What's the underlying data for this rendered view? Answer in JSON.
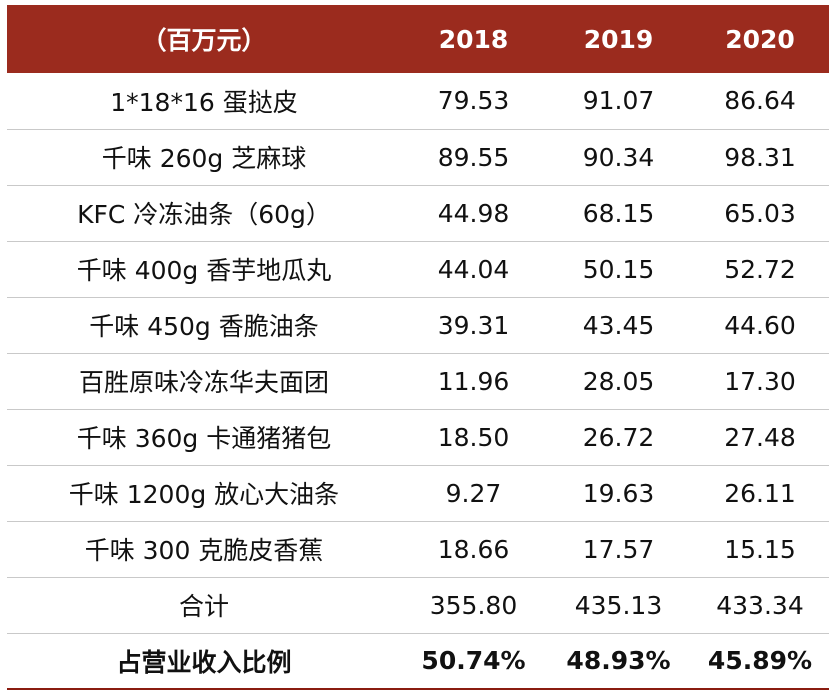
{
  "colors": {
    "header_bg": "#9b2b1e",
    "header_text": "#ffffff",
    "body_text": "#111111",
    "row_divider": "#c9c9c9",
    "bottom_rule": "#8a1c10"
  },
  "table": {
    "headers": [
      "（百万元）",
      "2018",
      "2019",
      "2020"
    ],
    "rows": [
      [
        "1*18*16 蛋挞皮",
        "79.53",
        "91.07",
        "86.64"
      ],
      [
        "千味 260g 芝麻球",
        "89.55",
        "90.34",
        "98.31"
      ],
      [
        "KFC 冷冻油条（60g）",
        "44.98",
        "68.15",
        "65.03"
      ],
      [
        "千味 400g 香芋地瓜丸",
        "44.04",
        "50.15",
        "52.72"
      ],
      [
        "千味 450g 香脆油条",
        "39.31",
        "43.45",
        "44.60"
      ],
      [
        "百胜原味冷冻华夫面团",
        "11.96",
        "28.05",
        "17.30"
      ],
      [
        "千味 360g 卡通猪猪包",
        "18.50",
        "26.72",
        "27.48"
      ],
      [
        "千味 1200g 放心大油条",
        "9.27",
        "19.63",
        "26.11"
      ],
      [
        "千味 300 克脆皮香蕉",
        "18.66",
        "17.57",
        "15.15"
      ],
      [
        "合计",
        "355.80",
        "435.13",
        "433.34"
      ]
    ],
    "total_row": [
      "占营业收入比例",
      "50.74%",
      "48.93%",
      "45.89%"
    ]
  }
}
